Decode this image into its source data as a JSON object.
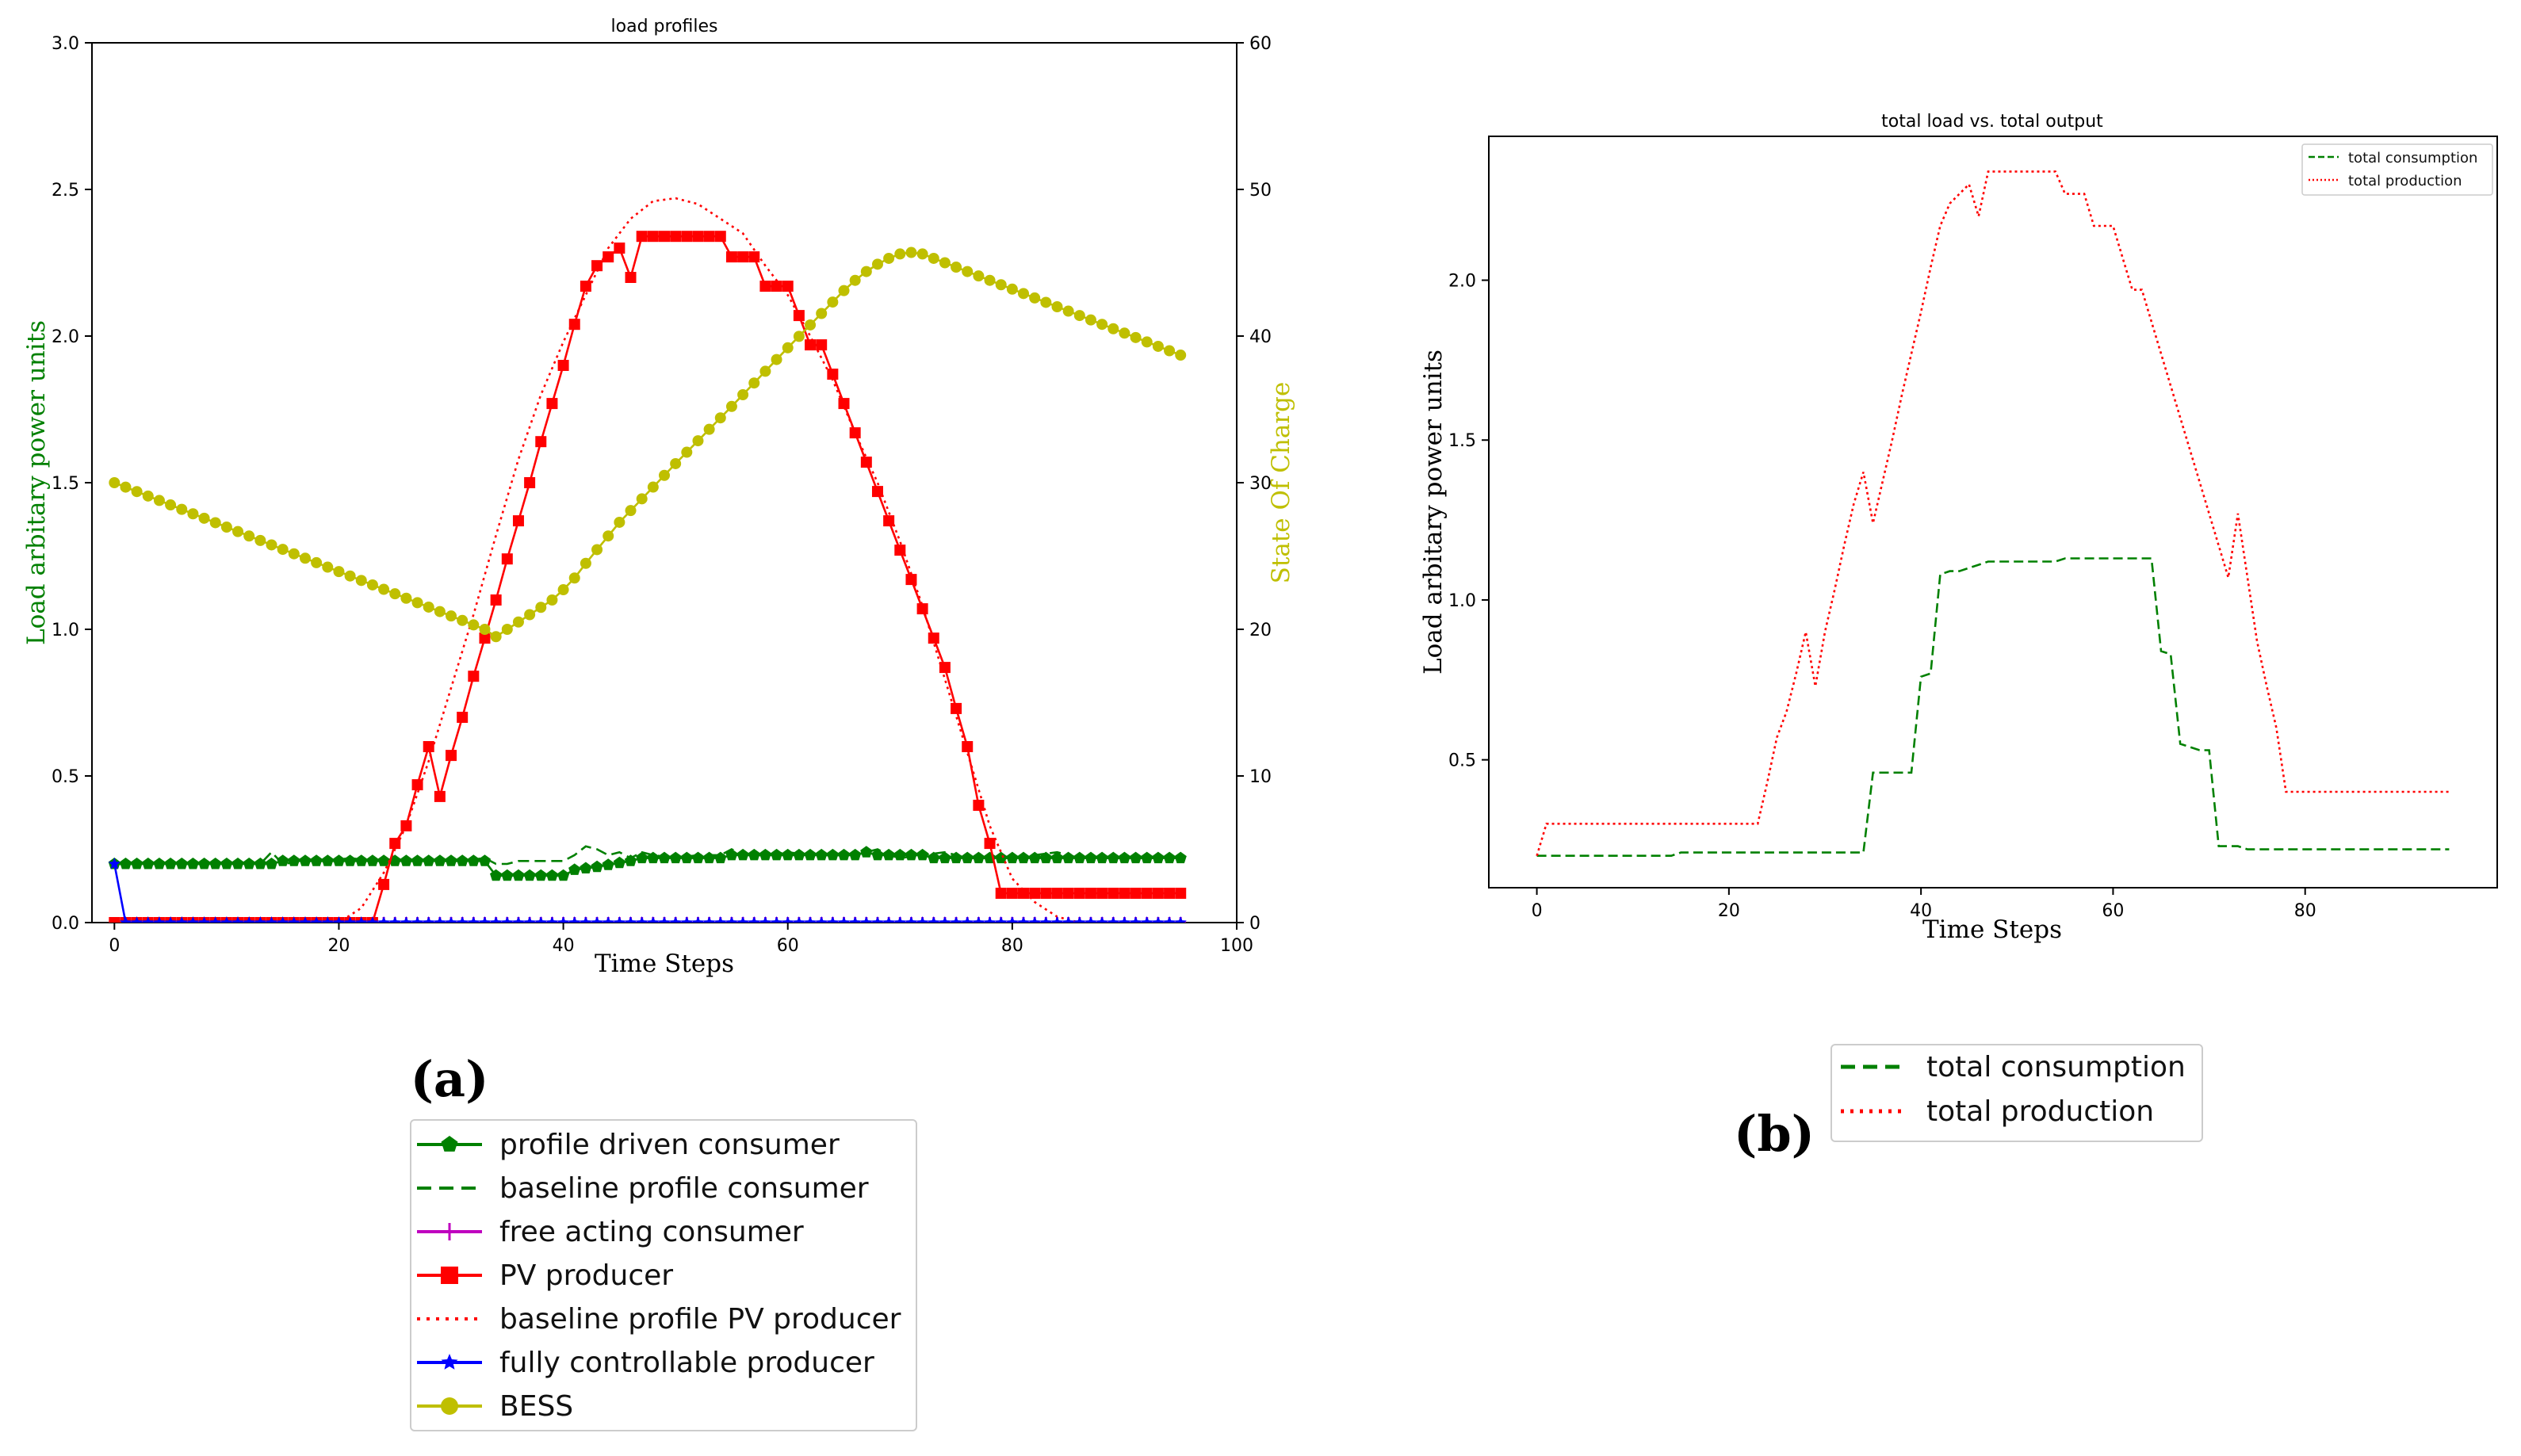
{
  "panel_labels": {
    "a": "(a)",
    "b": "(b)"
  },
  "colors": {
    "profile_driven": "#008000",
    "baseline_consumer": "#008000",
    "free_acting": "#bf00bf",
    "pv": "#ff0000",
    "baseline_pv": "#ff0000",
    "fully_controllable": "#0000ff",
    "bess": "#bfbf00",
    "ylabel_left": "#008000",
    "ylabel_right": "#bfbf00"
  },
  "chart_data": [
    {
      "type": "line",
      "title": "load profiles",
      "xlabel": "Time Steps",
      "ylabel": "Load arbitary power units",
      "ylabel_right": "State Of Charge",
      "xlim": [
        -2,
        100
      ],
      "ylim": [
        0,
        3.0
      ],
      "ylim_right": [
        0,
        60
      ],
      "xticks": [
        "0",
        "20",
        "40",
        "60",
        "80",
        "100"
      ],
      "yticks": [
        "0.0",
        "0.5",
        "1.0",
        "1.5",
        "2.0",
        "2.5",
        "3.0"
      ],
      "yticks_right": [
        "0",
        "10",
        "20",
        "30",
        "40",
        "50",
        "60"
      ],
      "legend": [
        "profile driven consumer",
        "baseline profile consumer",
        "free acting consumer",
        "PV producer",
        "baseline profile PV producer",
        "fully controllable producer",
        "BESS"
      ],
      "series": [
        {
          "name": "profile driven consumer",
          "axis": "left",
          "style": "solid-pentagon",
          "x": [
            0,
            14,
            15,
            33,
            34,
            40,
            41,
            43,
            46,
            47,
            54,
            55,
            60,
            66,
            67,
            68,
            72,
            73,
            77,
            78,
            95
          ],
          "y": [
            0.2,
            0.2,
            0.21,
            0.21,
            0.16,
            0.16,
            0.18,
            0.19,
            0.21,
            0.22,
            0.22,
            0.23,
            0.23,
            0.23,
            0.24,
            0.23,
            0.23,
            0.22,
            0.22,
            0.22,
            0.22
          ]
        },
        {
          "name": "baseline profile consumer",
          "axis": "left",
          "style": "dashed",
          "x": [
            0,
            13,
            14,
            15,
            17,
            19,
            21,
            23,
            25,
            27,
            29,
            31,
            33,
            34,
            35,
            36,
            38,
            39,
            40,
            41,
            42,
            43,
            44,
            45,
            46,
            47,
            48,
            50,
            52,
            53,
            54,
            55,
            56,
            58,
            60,
            62,
            64,
            65,
            66,
            67,
            68,
            69,
            70,
            72,
            74,
            76,
            78,
            80,
            82,
            84,
            86,
            95
          ],
          "y": [
            0.2,
            0.2,
            0.24,
            0.2,
            0.21,
            0.21,
            0.22,
            0.21,
            0.21,
            0.21,
            0.21,
            0.21,
            0.22,
            0.2,
            0.2,
            0.21,
            0.21,
            0.21,
            0.21,
            0.23,
            0.26,
            0.25,
            0.23,
            0.24,
            0.22,
            0.24,
            0.23,
            0.22,
            0.23,
            0.23,
            0.23,
            0.25,
            0.23,
            0.23,
            0.24,
            0.23,
            0.23,
            0.23,
            0.23,
            0.24,
            0.25,
            0.23,
            0.22,
            0.23,
            0.24,
            0.22,
            0.22,
            0.22,
            0.23,
            0.24,
            0.22,
            0.22
          ]
        },
        {
          "name": "free acting consumer",
          "axis": "left",
          "style": "solid-plus",
          "x": [
            0,
            95
          ],
          "y": [
            0.0,
            0.0
          ]
        },
        {
          "name": "PV producer",
          "axis": "left",
          "style": "solid-square",
          "x": [
            0,
            23,
            24,
            25,
            26,
            27,
            28,
            29,
            30,
            31,
            32,
            33,
            34,
            35,
            36,
            37,
            38,
            39,
            40,
            41,
            42,
            43,
            44,
            45,
            46,
            47,
            48,
            49,
            50,
            51,
            52,
            53,
            54,
            55,
            56,
            57,
            58,
            59,
            60,
            61,
            62,
            63,
            64,
            65,
            66,
            67,
            68,
            69,
            70,
            71,
            72,
            73,
            74,
            75,
            76,
            77,
            78,
            79,
            95
          ],
          "y": [
            0,
            0,
            0.13,
            0.27,
            0.33,
            0.47,
            0.6,
            0.43,
            0.57,
            0.7,
            0.84,
            0.97,
            1.1,
            1.24,
            1.37,
            1.5,
            1.64,
            1.77,
            1.9,
            2.04,
            2.17,
            2.24,
            2.27,
            2.3,
            2.2,
            2.34,
            2.34,
            2.34,
            2.34,
            2.34,
            2.34,
            2.34,
            2.34,
            2.27,
            2.27,
            2.27,
            2.17,
            2.17,
            2.17,
            2.07,
            1.97,
            1.97,
            1.87,
            1.77,
            1.67,
            1.57,
            1.47,
            1.37,
            1.27,
            1.17,
            1.07,
            0.97,
            0.87,
            0.73,
            0.6,
            0.4,
            0.27,
            0.1,
            0.1
          ]
        },
        {
          "name": "baseline profile PV producer",
          "axis": "left",
          "style": "dotted",
          "x": [
            0,
            20,
            22,
            24,
            26,
            28,
            30,
            32,
            34,
            36,
            38,
            40,
            42,
            44,
            46,
            48,
            50,
            52,
            54,
            56,
            58,
            60,
            62,
            64,
            66,
            68,
            70,
            72,
            74,
            76,
            78,
            80,
            82,
            84,
            86,
            95
          ],
          "y": [
            0,
            0,
            0.05,
            0.17,
            0.33,
            0.55,
            0.8,
            1.05,
            1.32,
            1.58,
            1.8,
            1.98,
            2.14,
            2.3,
            2.4,
            2.46,
            2.47,
            2.45,
            2.4,
            2.35,
            2.24,
            2.14,
            2.0,
            1.85,
            1.67,
            1.5,
            1.3,
            1.08,
            0.83,
            0.58,
            0.33,
            0.15,
            0.07,
            0.02,
            0,
            0
          ]
        },
        {
          "name": "fully controllable producer",
          "axis": "left",
          "style": "solid-star",
          "x": [
            0,
            1,
            95
          ],
          "y": [
            0.2,
            0.0,
            0.0
          ]
        },
        {
          "name": "BESS",
          "axis": "right",
          "style": "solid-circle",
          "x": [
            0,
            33,
            34,
            35,
            36,
            37,
            38,
            39,
            40,
            41,
            42,
            45,
            50,
            55,
            60,
            65,
            66,
            67,
            68,
            69,
            70,
            71,
            72,
            95
          ],
          "y": [
            30,
            20.0,
            19.5,
            20.0,
            20.5,
            21.0,
            21.5,
            22.0,
            22.7,
            23.5,
            24.5,
            27.3,
            31.3,
            35.2,
            39.2,
            43.1,
            43.8,
            44.4,
            44.9,
            45.3,
            45.6,
            45.7,
            45.6,
            38.7
          ]
        }
      ]
    },
    {
      "type": "line",
      "title": "total load vs. total output",
      "xlabel": "Time Steps",
      "ylabel": "Load arbitary power units",
      "xlim": [
        -5,
        100
      ],
      "ylim": [
        0.1,
        2.45
      ],
      "xticks": [
        "0",
        "20",
        "40",
        "60",
        "80"
      ],
      "yticks": [
        "0.5",
        "1.0",
        "1.5",
        "2.0"
      ],
      "legend": [
        "total consumption",
        "total production"
      ],
      "series": [
        {
          "name": "total consumption",
          "style": "dashed",
          "x": [
            0,
            14,
            15,
            34,
            35,
            39,
            40,
            41,
            42,
            43,
            44,
            45,
            46,
            47,
            54,
            55,
            64,
            65,
            66,
            67,
            69,
            70,
            71,
            73,
            74,
            95
          ],
          "y": [
            0.2,
            0.2,
            0.21,
            0.21,
            0.46,
            0.46,
            0.76,
            0.77,
            1.08,
            1.09,
            1.09,
            1.1,
            1.11,
            1.12,
            1.12,
            1.13,
            1.13,
            0.84,
            0.83,
            0.55,
            0.53,
            0.53,
            0.23,
            0.23,
            0.22,
            0.22
          ]
        },
        {
          "name": "total production",
          "style": "dotted",
          "x": [
            0,
            1,
            23,
            24,
            25,
            26,
            27,
            28,
            29,
            30,
            31,
            32,
            33,
            34,
            35,
            36,
            37,
            38,
            39,
            40,
            41,
            42,
            43,
            44,
            45,
            46,
            47,
            48,
            49,
            50,
            51,
            52,
            53,
            54,
            55,
            56,
            57,
            58,
            59,
            60,
            61,
            62,
            63,
            64,
            65,
            66,
            67,
            68,
            69,
            70,
            71,
            72,
            73,
            74,
            75,
            76,
            77,
            78,
            79,
            95
          ],
          "y": [
            0.2,
            0.3,
            0.3,
            0.43,
            0.57,
            0.65,
            0.77,
            0.9,
            0.73,
            0.9,
            1.03,
            1.17,
            1.3,
            1.4,
            1.24,
            1.37,
            1.5,
            1.64,
            1.77,
            1.9,
            2.04,
            2.17,
            2.24,
            2.27,
            2.3,
            2.2,
            2.34,
            2.34,
            2.34,
            2.34,
            2.34,
            2.34,
            2.34,
            2.34,
            2.27,
            2.27,
            2.27,
            2.17,
            2.17,
            2.17,
            2.07,
            1.97,
            1.97,
            1.87,
            1.77,
            1.67,
            1.57,
            1.47,
            1.37,
            1.27,
            1.17,
            1.07,
            1.27,
            1.07,
            0.87,
            0.73,
            0.6,
            0.4,
            0.4,
            0.4
          ]
        }
      ]
    }
  ]
}
